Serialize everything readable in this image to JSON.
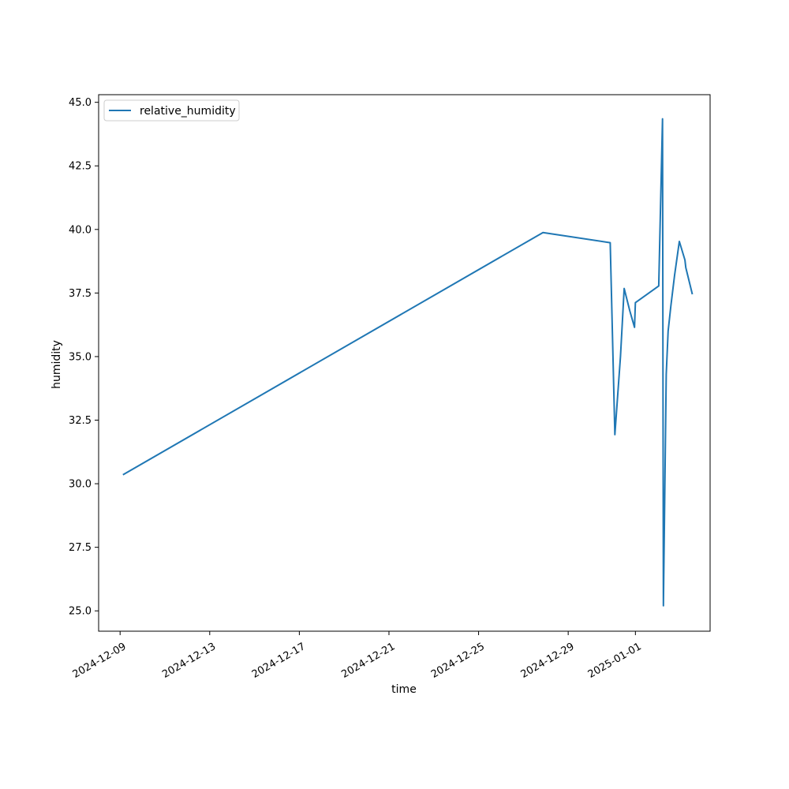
{
  "chart_data": {
    "type": "line",
    "title": "",
    "xlabel": "time",
    "ylabel": "humidity",
    "legend": {
      "placement": "upper-left",
      "entries": [
        "relative_humidity"
      ]
    },
    "grid": false,
    "colors": {
      "series": "#1f77b4",
      "axes": "#000000"
    },
    "xlim": [
      "2024-12-08 01:00",
      "2025-01-04 08:00"
    ],
    "ylim": [
      24.2,
      45.3
    ],
    "x_ticks": [
      "2024-12-09",
      "2024-12-13",
      "2024-12-17",
      "2024-12-21",
      "2024-12-25",
      "2024-12-29",
      "2025-01-01"
    ],
    "y_ticks": [
      "25.0",
      "27.5",
      "30.0",
      "32.5",
      "35.0",
      "37.5",
      "40.0",
      "42.5",
      "45.0"
    ],
    "series": [
      {
        "name": "relative_humidity",
        "x": [
          "2024-12-09 03:00",
          "2024-12-27 21:00",
          "2024-12-30 21:00",
          "2024-12-31 02:00",
          "2024-12-31 08:00",
          "2024-12-31 12:00",
          "2024-12-31 18:00",
          "2024-12-31 23:00",
          "2025-01-01 00:00",
          "2025-01-02 01:00",
          "2025-01-02 05:00",
          "2025-01-02 06:00",
          "2025-01-02 09:00",
          "2025-01-02 11:00",
          "2025-01-02 14:00",
          "2025-01-02 18:00",
          "2025-01-02 23:00",
          "2025-01-03 05:00",
          "2025-01-03 06:00",
          "2025-01-03 13:00"
        ],
        "y": [
          30.35,
          39.88,
          39.48,
          31.93,
          35.0,
          37.68,
          36.8,
          36.15,
          37.12,
          37.78,
          44.35,
          25.2,
          34.3,
          36.0,
          37.0,
          38.2,
          39.53,
          38.8,
          38.5,
          37.45
        ]
      }
    ]
  }
}
